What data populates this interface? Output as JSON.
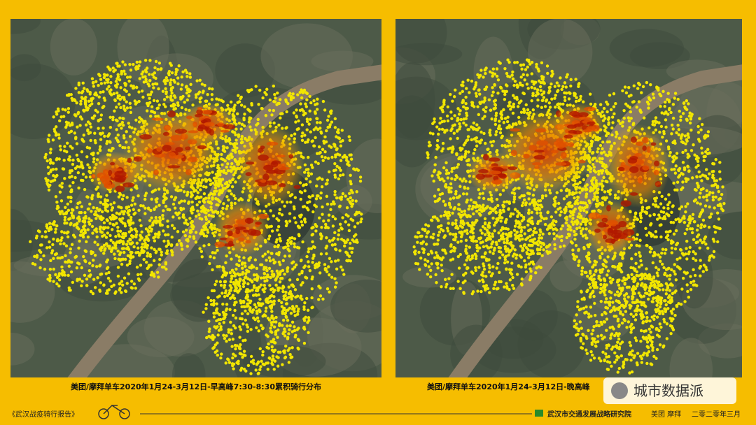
{
  "panels": [
    {
      "caption": "美团/摩拜单车2020年1月24-3月12日-早高峰7:30-8:30累积骑行分布"
    },
    {
      "caption": "美团/摩拜单车2020年1月24-3月12日-晚高峰"
    }
  ],
  "watermark": "城市数据派",
  "footer": {
    "report": "《武汉战疫骑行报告》",
    "institute": "武汉市交通发展战略研究院",
    "brands": "美团 摩拜",
    "date": "二零二零年三月"
  }
}
